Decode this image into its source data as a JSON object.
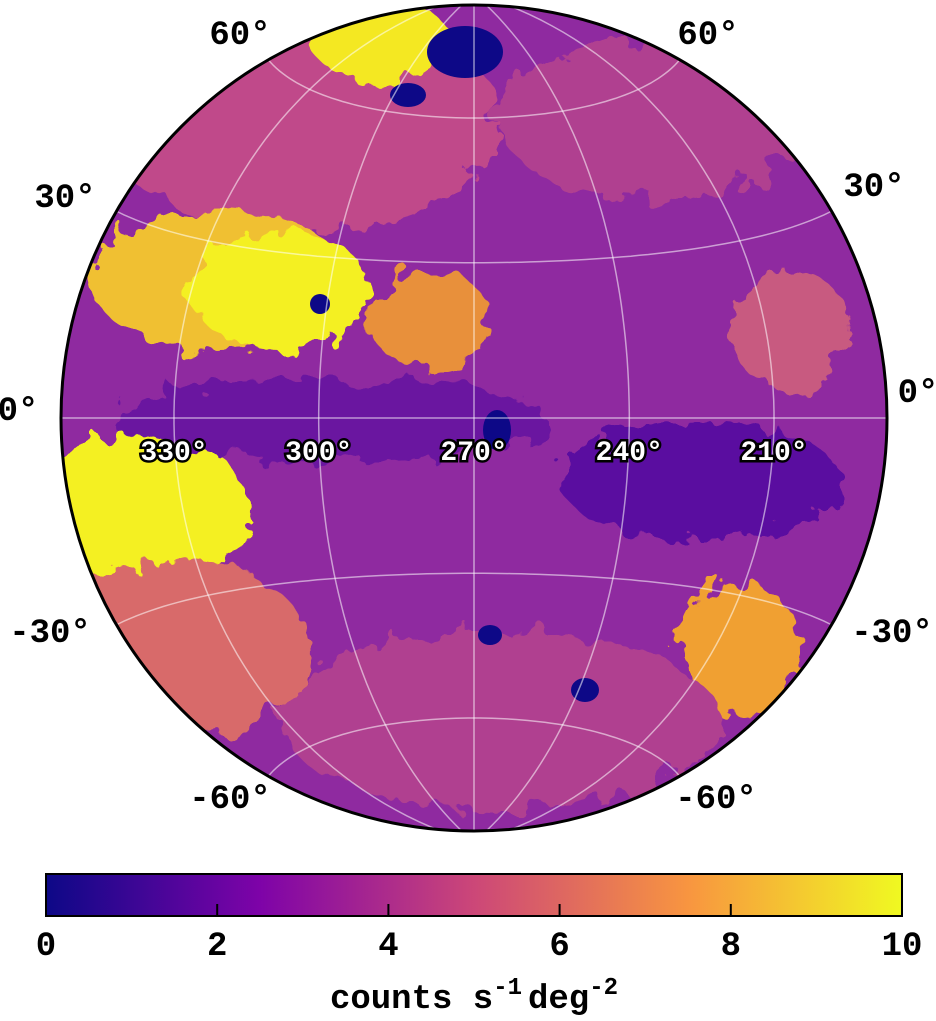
{
  "map": {
    "longitudes": [
      {
        "value": 330,
        "label": "330°"
      },
      {
        "value": 300,
        "label": "300°"
      },
      {
        "value": 270,
        "label": "270°"
      },
      {
        "value": 240,
        "label": "240°"
      },
      {
        "value": 210,
        "label": "210°"
      }
    ],
    "latitudes": [
      {
        "value": 60,
        "label": "60°"
      },
      {
        "value": 30,
        "label": "30°"
      },
      {
        "value": 0,
        "label": "0°"
      },
      {
        "value": -30,
        "label": "-30°"
      },
      {
        "value": -60,
        "label": "-60°"
      }
    ]
  },
  "colorbar": {
    "lim": [
      0,
      10
    ],
    "ticks": [
      0,
      2,
      4,
      6,
      8,
      10
    ],
    "label": {
      "base1": "counts s",
      "sup1": "-1",
      "base2": "deg",
      "sup2": "-2"
    }
  }
}
